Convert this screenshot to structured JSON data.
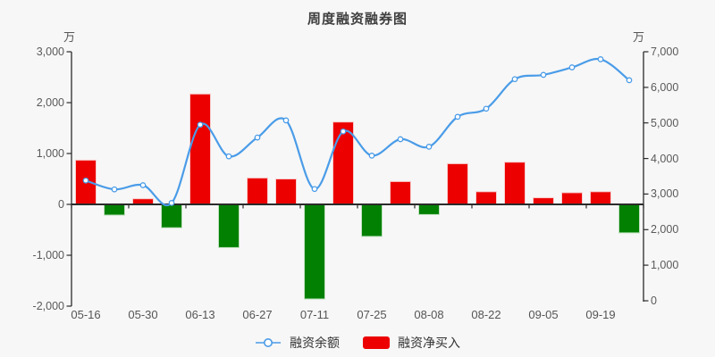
{
  "chart_data": {
    "type": "combo-bar-line",
    "title": "周度融资融券图",
    "categories": [
      "05-16",
      "",
      "05-30",
      "",
      "06-13",
      "",
      "06-27",
      "",
      "07-11",
      "",
      "07-25",
      "",
      "08-08",
      "",
      "08-22",
      "",
      "09-05",
      "",
      "09-19",
      ""
    ],
    "series": [
      {
        "name": "融资余额",
        "type": "line",
        "axis": "right",
        "values": [
          3380,
          3130,
          3250,
          2750,
          4950,
          4060,
          4590,
          5070,
          3140,
          4760,
          4080,
          4540,
          4330,
          5170,
          5400,
          6230,
          6350,
          6560,
          6790,
          6200
        ]
      },
      {
        "name": "融资净买入",
        "type": "bar",
        "axis": "left",
        "values": [
          870,
          -210,
          110,
          -460,
          2170,
          -850,
          520,
          500,
          -1860,
          1620,
          -630,
          450,
          -200,
          800,
          250,
          830,
          130,
          230,
          250,
          -560
        ]
      }
    ],
    "left_axis": {
      "unit": "万",
      "min": -2000,
      "max": 3000,
      "tick_labels": [
        "3,000",
        "2,000",
        "1,000",
        "0",
        "-1,000",
        "-2,000"
      ]
    },
    "right_axis": {
      "unit": "万",
      "min": 0,
      "max": 7000,
      "tick_labels": [
        "7,000",
        "6,000",
        "5,000",
        "4,000",
        "3,000",
        "2,000",
        "1,000",
        "0"
      ]
    },
    "legend": [
      "融资余额",
      "融资净买入"
    ],
    "grid": false,
    "legend_position": "bottom-center",
    "colors": {
      "background": "#f7f7f7",
      "line": "#4a9ce8",
      "line_marker_fill": "#ffffff",
      "bar_positive": "#ec0000",
      "bar_positive_border": "#f9cccc",
      "bar_negative": "#028002",
      "bar_negative_border": "#bfe0bf",
      "axis_line": "#2b2b2b",
      "axis_text": "#5a5a5a",
      "title_text": "#3e3e3e"
    }
  }
}
